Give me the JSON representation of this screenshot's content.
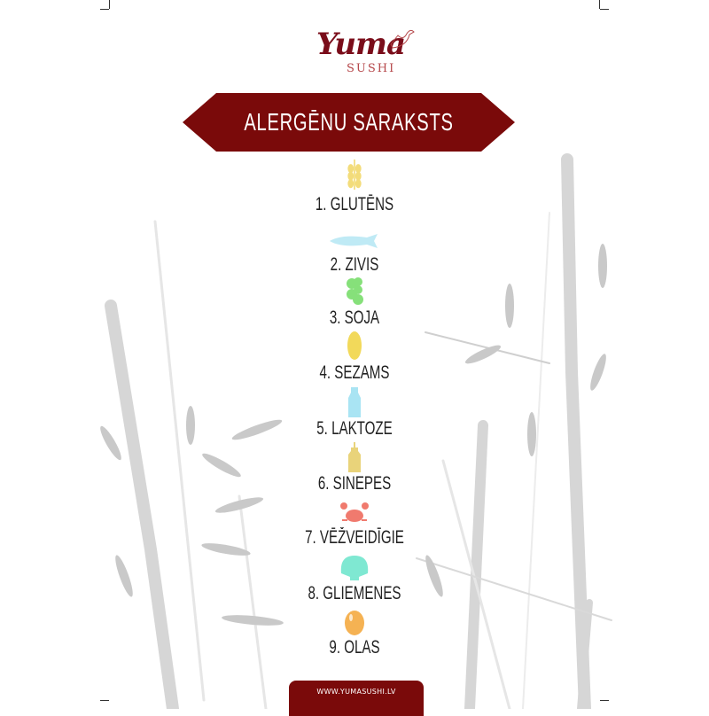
{
  "logo": {
    "brand": "Yuma",
    "subtitle": "SUSHI"
  },
  "banner": {
    "title": "ALERGĒNU SARAKSTS",
    "color": "#7a0a0a"
  },
  "allergens": [
    {
      "label": "1. GLUTĒNS",
      "icon": "wheat-icon",
      "color": "#f3dc7a"
    },
    {
      "label": "2. ZIVIS",
      "icon": "fish-icon",
      "color": "#bfeaf5"
    },
    {
      "label": "3. SOJA",
      "icon": "soybean-icon",
      "color": "#86e07a"
    },
    {
      "label": "4. SEZAMS",
      "icon": "corn-icon",
      "color": "#f2d95a"
    },
    {
      "label": "5. LAKTOZE",
      "icon": "milk-bottle-icon",
      "color": "#a9e4f3"
    },
    {
      "label": "6. SINEPES",
      "icon": "mustard-bottle-icon",
      "color": "#e9d37a"
    },
    {
      "label": "7. VĒŽVEIDĪGIE",
      "icon": "crab-icon",
      "color": "#f07a6e"
    },
    {
      "label": "8. GLIEMENES",
      "icon": "shell-icon",
      "color": "#7fe8d2"
    },
    {
      "label": "9. OLAS",
      "icon": "egg-icon",
      "color": "#f5b253"
    }
  ],
  "footer": {
    "website": "WWW.YUMASUSHI.LV"
  }
}
